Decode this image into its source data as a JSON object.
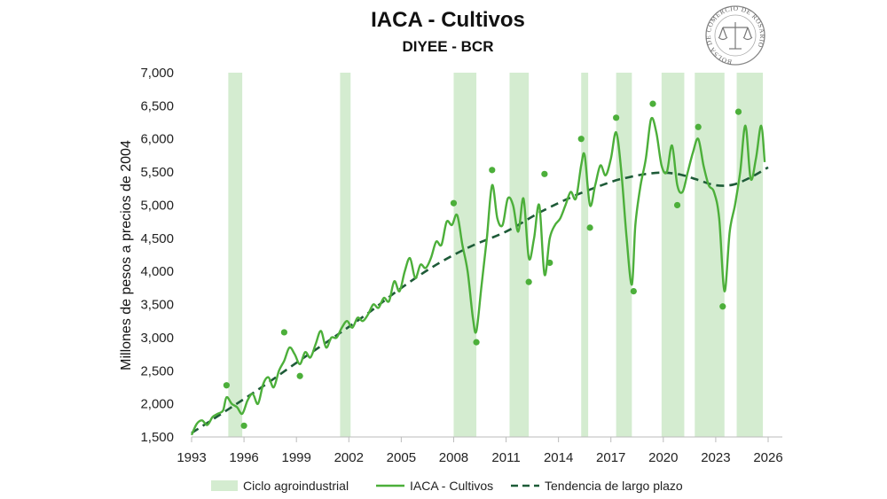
{
  "chart_data": {
    "type": "line",
    "title": "IACA - Cultivos",
    "subtitle": "DIYEE - BCR",
    "ylabel": "Millones de pesos a precios de 2004",
    "xlabel": "",
    "xlim": [
      1993,
      2026
    ],
    "ylim": [
      1500,
      7000
    ],
    "x_ticks": [
      1993,
      1996,
      1999,
      2002,
      2005,
      2008,
      2011,
      2014,
      2017,
      2020,
      2023,
      2026
    ],
    "x_tick_labels": [
      "1993",
      "1996",
      "1999",
      "2002",
      "2005",
      "2008",
      "2011",
      "2014",
      "2017",
      "2020",
      "2023",
      "2026"
    ],
    "y_ticks": [
      1500,
      2000,
      2500,
      3000,
      3500,
      4000,
      4500,
      5000,
      5500,
      6000,
      6500,
      7000
    ],
    "y_tick_labels": [
      "1,500",
      "2,000",
      "2,500",
      "3,000",
      "3,500",
      "4,000",
      "4,500",
      "5,000",
      "5,500",
      "6,000",
      "6,500",
      "7,000"
    ],
    "grid": false,
    "legend_position": "bottom",
    "legend": [
      "Ciclo agroindustrial",
      "IACA - Cultivos",
      "Tendencia de largo plazo"
    ],
    "colors": {
      "cycle_band": "#d4ecd0",
      "series": "#4caf3a",
      "trend": "#1e5b38",
      "dots": "#4caf3a",
      "axis": "#bbbbbb",
      "logo": "#888888"
    },
    "cycles": [
      {
        "start": 1995.1,
        "end": 1995.9
      },
      {
        "start": 2001.5,
        "end": 2002.1
      },
      {
        "start": 2008.0,
        "end": 2009.3
      },
      {
        "start": 2011.2,
        "end": 2012.3
      },
      {
        "start": 2015.3,
        "end": 2015.7
      },
      {
        "start": 2017.3,
        "end": 2018.2
      },
      {
        "start": 2019.9,
        "end": 2021.2
      },
      {
        "start": 2021.8,
        "end": 2023.5
      },
      {
        "start": 2024.2,
        "end": 2025.7
      }
    ],
    "series": [
      {
        "name": "IACA - Cultivos",
        "x": [
          1993.0,
          1993.3,
          1993.6,
          1993.9,
          1994.2,
          1994.5,
          1994.8,
          1995.0,
          1995.3,
          1995.6,
          1995.9,
          1996.2,
          1996.5,
          1996.8,
          1997.1,
          1997.4,
          1997.7,
          1998.0,
          1998.3,
          1998.6,
          1998.9,
          1999.2,
          1999.5,
          1999.8,
          2000.1,
          2000.4,
          2000.7,
          2001.0,
          2001.3,
          2001.6,
          2001.9,
          2002.2,
          2002.5,
          2002.8,
          2003.1,
          2003.4,
          2003.7,
          2004.0,
          2004.3,
          2004.6,
          2004.9,
          2005.2,
          2005.5,
          2005.8,
          2006.1,
          2006.4,
          2006.7,
          2007.0,
          2007.3,
          2007.6,
          2007.9,
          2008.2,
          2008.5,
          2008.8,
          2009.1,
          2009.3,
          2009.6,
          2009.9,
          2010.2,
          2010.5,
          2010.8,
          2011.1,
          2011.4,
          2011.7,
          2012.0,
          2012.3,
          2012.6,
          2012.9,
          2013.2,
          2013.5,
          2013.8,
          2014.1,
          2014.4,
          2014.7,
          2015.0,
          2015.3,
          2015.5,
          2015.8,
          2016.1,
          2016.4,
          2016.7,
          2017.0,
          2017.3,
          2017.6,
          2017.9,
          2018.2,
          2018.4,
          2018.7,
          2019.0,
          2019.3,
          2019.6,
          2019.9,
          2020.2,
          2020.5,
          2020.8,
          2021.1,
          2021.4,
          2021.7,
          2022.0,
          2022.3,
          2022.6,
          2022.9,
          2023.2,
          2023.5,
          2023.8,
          2024.1,
          2024.4,
          2024.7,
          2025.0,
          2025.3,
          2025.6,
          2025.8
        ],
        "values": [
          1530,
          1700,
          1750,
          1680,
          1800,
          1850,
          1900,
          2100,
          2000,
          1950,
          1850,
          2050,
          2150,
          2000,
          2300,
          2400,
          2250,
          2500,
          2650,
          2850,
          2750,
          2600,
          2780,
          2700,
          2900,
          3100,
          2850,
          3000,
          3000,
          3150,
          3250,
          3150,
          3300,
          3250,
          3350,
          3500,
          3450,
          3600,
          3550,
          3850,
          3700,
          4000,
          4200,
          3900,
          4100,
          4050,
          4200,
          4450,
          4400,
          4750,
          4700,
          4850,
          4400,
          4000,
          3300,
          3100,
          3800,
          4500,
          5300,
          4800,
          4700,
          5100,
          5000,
          4600,
          5100,
          4200,
          4500,
          5000,
          3950,
          4500,
          4700,
          4800,
          5000,
          5200,
          5100,
          5600,
          5750,
          5000,
          5300,
          5600,
          5450,
          5700,
          6100,
          5500,
          4500,
          3800,
          4700,
          5300,
          5700,
          6300,
          6100,
          5600,
          5500,
          5900,
          5300,
          5200,
          5500,
          5800,
          6000,
          5600,
          5300,
          5200,
          4800,
          3700,
          4600,
          5000,
          5500,
          6200,
          5400,
          5700,
          6200,
          5650
        ]
      }
    ],
    "trend": {
      "name": "Tendencia de largo plazo",
      "x": [
        1993,
        1995,
        1997,
        1999,
        2001,
        2003,
        2005,
        2007,
        2009,
        2011,
        2013,
        2015,
        2017,
        2018,
        2019,
        2020,
        2021,
        2022,
        2023,
        2024,
        2025,
        2026
      ],
      "values": [
        1560,
        1900,
        2250,
        2620,
        2980,
        3350,
        3750,
        4100,
        4380,
        4600,
        4900,
        5150,
        5350,
        5420,
        5470,
        5490,
        5460,
        5380,
        5300,
        5310,
        5420,
        5570
      ]
    },
    "cycle_points": [
      {
        "x": 1995.0,
        "y": 2280
      },
      {
        "x": 1996.0,
        "y": 1670
      },
      {
        "x": 1998.3,
        "y": 3080
      },
      {
        "x": 1999.2,
        "y": 2420
      },
      {
        "x": 2008.0,
        "y": 5030
      },
      {
        "x": 2009.3,
        "y": 2930
      },
      {
        "x": 2010.2,
        "y": 5530
      },
      {
        "x": 2012.3,
        "y": 3840
      },
      {
        "x": 2013.2,
        "y": 5470
      },
      {
        "x": 2013.5,
        "y": 4130
      },
      {
        "x": 2015.3,
        "y": 6000
      },
      {
        "x": 2015.8,
        "y": 4660
      },
      {
        "x": 2017.3,
        "y": 6320
      },
      {
        "x": 2018.3,
        "y": 3700
      },
      {
        "x": 2019.4,
        "y": 6530
      },
      {
        "x": 2020.8,
        "y": 5000
      },
      {
        "x": 2022.0,
        "y": 6180
      },
      {
        "x": 2023.4,
        "y": 3470
      },
      {
        "x": 2024.3,
        "y": 6410
      }
    ]
  },
  "logo": {
    "text": "BOLSA DE COMERCIO DE ROSARIO"
  }
}
